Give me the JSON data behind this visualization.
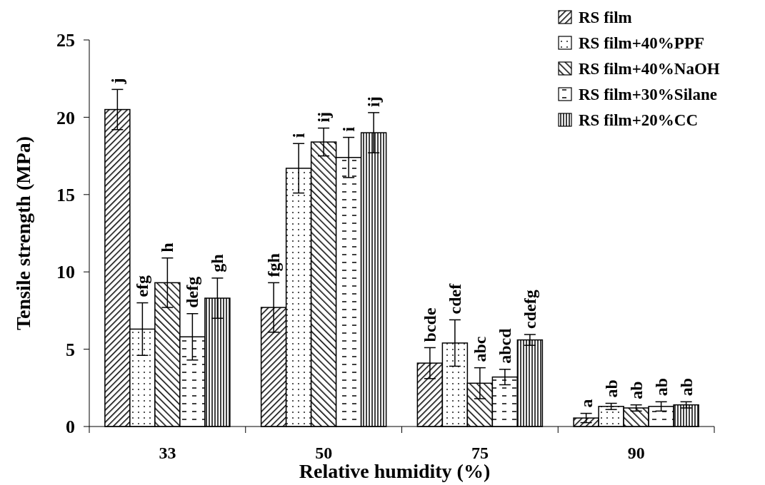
{
  "chart_data": {
    "type": "bar",
    "xlabel": "Relative humidity (%)",
    "ylabel": "Tensile strength (MPa)",
    "categories": [
      "33",
      "50",
      "75",
      "90"
    ],
    "ylim": [
      0,
      25
    ],
    "yticks": [
      0,
      5,
      10,
      15,
      20,
      25
    ],
    "grid": false,
    "legend": "top right",
    "series": [
      {
        "name": "RS film",
        "color": "#000000",
        "values": [
          20.5,
          7.7,
          4.1,
          0.55
        ],
        "errors": [
          1.3,
          1.6,
          1.0,
          0.3
        ],
        "value_labels": [
          "j",
          "fgh",
          "bcde",
          "a"
        ]
      },
      {
        "name": "RS film+40%PPF",
        "color": "#000000",
        "values": [
          6.3,
          16.7,
          5.4,
          1.3
        ],
        "errors": [
          1.7,
          1.6,
          1.5,
          0.2
        ],
        "value_labels": [
          "efg",
          "i",
          "cdef",
          "ab"
        ]
      },
      {
        "name": "RS film+40%NaOH",
        "color": "#000000",
        "values": [
          9.3,
          18.4,
          2.8,
          1.2
        ],
        "errors": [
          1.6,
          0.9,
          1.0,
          0.2
        ],
        "value_labels": [
          "h",
          "ij",
          "abc",
          "ab"
        ]
      },
      {
        "name": "RS film+30%Silane",
        "color": "#000000",
        "values": [
          5.8,
          17.4,
          3.2,
          1.3
        ],
        "errors": [
          1.5,
          1.3,
          0.5,
          0.3
        ],
        "value_labels": [
          "defg",
          "i",
          "abcd",
          "ab"
        ]
      },
      {
        "name": "RS film+20%CC",
        "color": "#000000",
        "values": [
          8.3,
          19.0,
          5.6,
          1.4
        ],
        "errors": [
          1.3,
          1.3,
          0.35,
          0.2
        ],
        "value_labels": [
          "gh",
          "ij",
          "cdefg",
          "ab"
        ]
      }
    ]
  }
}
